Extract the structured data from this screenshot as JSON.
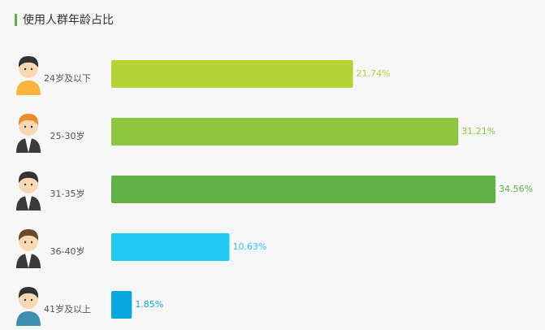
{
  "chart_data": {
    "type": "bar",
    "title": "使用人群年龄占比",
    "categories": [
      "24岁及以下",
      "25-30岁",
      "31-35岁",
      "36-40岁",
      "41岁及以上"
    ],
    "values": [
      21.74,
      31.21,
      34.56,
      10.63,
      1.85
    ],
    "value_labels": [
      "21.74%",
      "31.21%",
      "34.56%",
      "10.63%",
      "1.85%"
    ],
    "colors": [
      "#b5d334",
      "#8cc63f",
      "#62b146",
      "#22c9f2",
      "#0aa8e0"
    ]
  }
}
